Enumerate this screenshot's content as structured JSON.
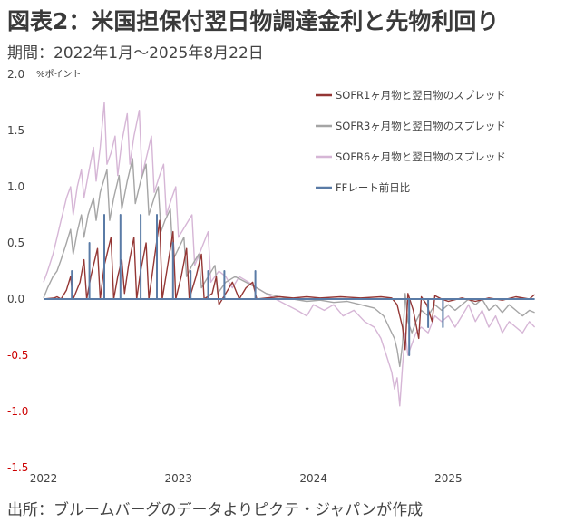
{
  "header": {
    "title": "図表2：米国担保付翌日物調達金利と先物利回り",
    "period": "期間：2022年1月〜2025年8月22日"
  },
  "footer": {
    "source": "出所：ブルームバーグのデータよりピクテ・ジャパンが作成"
  },
  "colors": {
    "axis_text": "#444444",
    "negative_tick": "#cc0000",
    "baseline": "#bfbfbf"
  },
  "chart_data": {
    "type": "line",
    "ylabel": "%ポイント",
    "ylim": [
      -1.5,
      2.0
    ],
    "yticks": [
      2.0,
      1.5,
      1.0,
      0.5,
      0.0,
      -0.5,
      -1.0,
      -1.5
    ],
    "ytick_labels": [
      "2.0",
      "1.5",
      "1.0",
      "0.5",
      "0.0",
      "-0.5",
      "-1.0",
      "-1.5"
    ],
    "xlim": [
      2022.0,
      2025.75
    ],
    "xticks": [
      2022,
      2023,
      2024,
      2025
    ],
    "xtick_labels": [
      "2022",
      "2023",
      "2024",
      "2025"
    ],
    "legend_position": "top-right",
    "grid": false,
    "series": [
      {
        "name": "SOFR1ヶ月物と翌日物のスプレッド",
        "color": "#943634",
        "points": [
          [
            2022.0,
            0.0
          ],
          [
            2022.08,
            0.01
          ],
          [
            2022.1,
            0.02
          ],
          [
            2022.13,
            0.0
          ],
          [
            2022.17,
            0.08
          ],
          [
            2022.2,
            0.2
          ],
          [
            2022.22,
            0.0
          ],
          [
            2022.27,
            0.15
          ],
          [
            2022.3,
            0.35
          ],
          [
            2022.32,
            0.0
          ],
          [
            2022.35,
            0.2
          ],
          [
            2022.4,
            0.45
          ],
          [
            2022.42,
            0.0
          ],
          [
            2022.45,
            0.3
          ],
          [
            2022.5,
            0.55
          ],
          [
            2022.52,
            0.0
          ],
          [
            2022.55,
            0.2
          ],
          [
            2022.58,
            0.35
          ],
          [
            2022.6,
            0.05
          ],
          [
            2022.63,
            0.3
          ],
          [
            2022.67,
            0.55
          ],
          [
            2022.69,
            0.0
          ],
          [
            2022.72,
            0.25
          ],
          [
            2022.76,
            0.5
          ],
          [
            2022.78,
            0.0
          ],
          [
            2022.82,
            0.35
          ],
          [
            2022.86,
            0.7
          ],
          [
            2022.88,
            0.0
          ],
          [
            2022.92,
            0.3
          ],
          [
            2022.96,
            0.6
          ],
          [
            2022.98,
            0.0
          ],
          [
            2023.02,
            0.2
          ],
          [
            2023.06,
            0.45
          ],
          [
            2023.08,
            0.0
          ],
          [
            2023.13,
            0.2
          ],
          [
            2023.17,
            0.4
          ],
          [
            2023.19,
            0.0
          ],
          [
            2023.25,
            0.05
          ],
          [
            2023.28,
            0.2
          ],
          [
            2023.3,
            -0.05
          ],
          [
            2023.35,
            0.05
          ],
          [
            2023.4,
            0.15
          ],
          [
            2023.45,
            0.0
          ],
          [
            2023.5,
            0.1
          ],
          [
            2023.55,
            0.15
          ],
          [
            2023.58,
            0.0
          ],
          [
            2023.65,
            0.01
          ],
          [
            2023.75,
            0.02
          ],
          [
            2023.85,
            0.01
          ],
          [
            2023.95,
            0.02
          ],
          [
            2024.05,
            0.01
          ],
          [
            2024.2,
            0.02
          ],
          [
            2024.35,
            0.01
          ],
          [
            2024.5,
            0.02
          ],
          [
            2024.58,
            0.01
          ],
          [
            2024.62,
            -0.05
          ],
          [
            2024.66,
            -0.25
          ],
          [
            2024.68,
            -0.45
          ],
          [
            2024.7,
            0.05
          ],
          [
            2024.74,
            -0.1
          ],
          [
            2024.78,
            -0.35
          ],
          [
            2024.8,
            0.02
          ],
          [
            2024.84,
            -0.05
          ],
          [
            2024.88,
            -0.2
          ],
          [
            2024.9,
            0.03
          ],
          [
            2024.95,
            0.0
          ],
          [
            2025.0,
            -0.02
          ],
          [
            2025.1,
            0.01
          ],
          [
            2025.2,
            -0.02
          ],
          [
            2025.3,
            0.01
          ],
          [
            2025.4,
            -0.01
          ],
          [
            2025.5,
            0.02
          ],
          [
            2025.6,
            0.0
          ],
          [
            2025.64,
            0.04
          ]
        ]
      },
      {
        "name": "SOFR3ヶ月物と翌日物のスプレッド",
        "color": "#a5a5a5",
        "points": [
          [
            2022.0,
            0.01
          ],
          [
            2022.03,
            0.1
          ],
          [
            2022.07,
            0.2
          ],
          [
            2022.1,
            0.25
          ],
          [
            2022.13,
            0.35
          ],
          [
            2022.17,
            0.5
          ],
          [
            2022.2,
            0.62
          ],
          [
            2022.22,
            0.4
          ],
          [
            2022.25,
            0.6
          ],
          [
            2022.28,
            0.75
          ],
          [
            2022.3,
            0.55
          ],
          [
            2022.33,
            0.75
          ],
          [
            2022.37,
            0.9
          ],
          [
            2022.39,
            0.7
          ],
          [
            2022.42,
            0.95
          ],
          [
            2022.47,
            1.15
          ],
          [
            2022.49,
            0.7
          ],
          [
            2022.52,
            0.9
          ],
          [
            2022.56,
            1.1
          ],
          [
            2022.58,
            0.8
          ],
          [
            2022.62,
            1.05
          ],
          [
            2022.66,
            1.25
          ],
          [
            2022.68,
            0.85
          ],
          [
            2022.72,
            1.05
          ],
          [
            2022.76,
            1.2
          ],
          [
            2022.78,
            0.75
          ],
          [
            2022.82,
            0.9
          ],
          [
            2022.85,
            1.0
          ],
          [
            2022.87,
            0.6
          ],
          [
            2022.9,
            0.7
          ],
          [
            2022.94,
            0.8
          ],
          [
            2022.96,
            0.35
          ],
          [
            2023.0,
            0.45
          ],
          [
            2023.04,
            0.55
          ],
          [
            2023.06,
            0.2
          ],
          [
            2023.1,
            0.3
          ],
          [
            2023.15,
            0.4
          ],
          [
            2023.17,
            0.1
          ],
          [
            2023.22,
            0.2
          ],
          [
            2023.27,
            0.3
          ],
          [
            2023.29,
            0.05
          ],
          [
            2023.35,
            0.15
          ],
          [
            2023.42,
            0.2
          ],
          [
            2023.5,
            0.15
          ],
          [
            2023.58,
            0.1
          ],
          [
            2023.65,
            0.05
          ],
          [
            2023.75,
            0.02
          ],
          [
            2023.85,
            0.0
          ],
          [
            2023.95,
            -0.02
          ],
          [
            2024.05,
            -0.01
          ],
          [
            2024.15,
            -0.03
          ],
          [
            2024.25,
            -0.02
          ],
          [
            2024.35,
            -0.05
          ],
          [
            2024.45,
            -0.08
          ],
          [
            2024.52,
            -0.15
          ],
          [
            2024.56,
            -0.25
          ],
          [
            2024.6,
            -0.35
          ],
          [
            2024.62,
            -0.45
          ],
          [
            2024.64,
            -0.6
          ],
          [
            2024.66,
            -0.4
          ],
          [
            2024.68,
            0.05
          ],
          [
            2024.7,
            -0.2
          ],
          [
            2024.73,
            -0.3
          ],
          [
            2024.76,
            -0.2
          ],
          [
            2024.8,
            -0.1
          ],
          [
            2024.85,
            -0.15
          ],
          [
            2024.9,
            -0.05
          ],
          [
            2024.95,
            -0.1
          ],
          [
            2025.0,
            -0.05
          ],
          [
            2025.05,
            -0.1
          ],
          [
            2025.1,
            -0.05
          ],
          [
            2025.15,
            0.0
          ],
          [
            2025.2,
            -0.05
          ],
          [
            2025.25,
            0.0
          ],
          [
            2025.3,
            -0.1
          ],
          [
            2025.35,
            -0.05
          ],
          [
            2025.4,
            -0.12
          ],
          [
            2025.45,
            -0.05
          ],
          [
            2025.5,
            -0.1
          ],
          [
            2025.55,
            -0.15
          ],
          [
            2025.6,
            -0.1
          ],
          [
            2025.64,
            -0.12
          ]
        ]
      },
      {
        "name": "SOFR6ヶ月物と翌日物のスプレッド",
        "color": "#d6b6d6",
        "points": [
          [
            2022.0,
            0.15
          ],
          [
            2022.03,
            0.25
          ],
          [
            2022.07,
            0.4
          ],
          [
            2022.1,
            0.55
          ],
          [
            2022.13,
            0.7
          ],
          [
            2022.17,
            0.9
          ],
          [
            2022.2,
            1.0
          ],
          [
            2022.22,
            0.75
          ],
          [
            2022.25,
            1.0
          ],
          [
            2022.28,
            1.15
          ],
          [
            2022.3,
            0.9
          ],
          [
            2022.33,
            1.1
          ],
          [
            2022.37,
            1.35
          ],
          [
            2022.39,
            1.05
          ],
          [
            2022.42,
            1.35
          ],
          [
            2022.45,
            1.75
          ],
          [
            2022.47,
            1.2
          ],
          [
            2022.5,
            1.3
          ],
          [
            2022.53,
            1.45
          ],
          [
            2022.55,
            1.1
          ],
          [
            2022.58,
            1.4
          ],
          [
            2022.62,
            1.65
          ],
          [
            2022.64,
            1.2
          ],
          [
            2022.67,
            1.45
          ],
          [
            2022.71,
            1.68
          ],
          [
            2022.73,
            1.1
          ],
          [
            2022.77,
            1.3
          ],
          [
            2022.8,
            1.45
          ],
          [
            2022.82,
            0.95
          ],
          [
            2022.86,
            1.1
          ],
          [
            2022.89,
            1.2
          ],
          [
            2022.91,
            0.75
          ],
          [
            2022.95,
            0.9
          ],
          [
            2022.98,
            1.0
          ],
          [
            2023.0,
            0.55
          ],
          [
            2023.05,
            0.65
          ],
          [
            2023.1,
            0.75
          ],
          [
            2023.12,
            0.3
          ],
          [
            2023.17,
            0.45
          ],
          [
            2023.22,
            0.6
          ],
          [
            2023.24,
            0.15
          ],
          [
            2023.3,
            0.25
          ],
          [
            2023.35,
            0.2
          ],
          [
            2023.4,
            0.1
          ],
          [
            2023.45,
            0.2
          ],
          [
            2023.52,
            0.15
          ],
          [
            2023.58,
            0.1
          ],
          [
            2023.65,
            0.05
          ],
          [
            2023.72,
            0.0
          ],
          [
            2023.8,
            -0.05
          ],
          [
            2023.88,
            -0.1
          ],
          [
            2023.95,
            -0.15
          ],
          [
            2024.0,
            -0.05
          ],
          [
            2024.08,
            -0.1
          ],
          [
            2024.15,
            -0.05
          ],
          [
            2024.22,
            -0.15
          ],
          [
            2024.3,
            -0.1
          ],
          [
            2024.38,
            -0.2
          ],
          [
            2024.45,
            -0.25
          ],
          [
            2024.5,
            -0.35
          ],
          [
            2024.54,
            -0.5
          ],
          [
            2024.58,
            -0.65
          ],
          [
            2024.6,
            -0.8
          ],
          [
            2024.62,
            -0.7
          ],
          [
            2024.64,
            -0.95
          ],
          [
            2024.66,
            -0.6
          ],
          [
            2024.68,
            -0.3
          ],
          [
            2024.7,
            -0.5
          ],
          [
            2024.73,
            -0.4
          ],
          [
            2024.76,
            -0.3
          ],
          [
            2024.8,
            -0.25
          ],
          [
            2024.85,
            -0.3
          ],
          [
            2024.9,
            -0.15
          ],
          [
            2024.95,
            -0.2
          ],
          [
            2025.0,
            -0.15
          ],
          [
            2025.05,
            -0.25
          ],
          [
            2025.1,
            -0.15
          ],
          [
            2025.15,
            -0.05
          ],
          [
            2025.2,
            -0.2
          ],
          [
            2025.25,
            -0.1
          ],
          [
            2025.3,
            -0.25
          ],
          [
            2025.35,
            -0.15
          ],
          [
            2025.4,
            -0.3
          ],
          [
            2025.45,
            -0.2
          ],
          [
            2025.5,
            -0.25
          ],
          [
            2025.55,
            -0.3
          ],
          [
            2025.6,
            -0.2
          ],
          [
            2025.64,
            -0.25
          ]
        ]
      },
      {
        "name": "FFレート前日比",
        "color": "#5a7ba6",
        "points": [
          [
            2022.0,
            0.0
          ],
          [
            2022.21,
            0.0
          ],
          [
            2022.21,
            0.25
          ],
          [
            2022.21,
            0.0
          ],
          [
            2022.34,
            0.0
          ],
          [
            2022.34,
            0.5
          ],
          [
            2022.34,
            0.0
          ],
          [
            2022.45,
            0.0
          ],
          [
            2022.45,
            0.75
          ],
          [
            2022.45,
            0.0
          ],
          [
            2022.57,
            0.0
          ],
          [
            2022.57,
            0.75
          ],
          [
            2022.57,
            0.0
          ],
          [
            2022.72,
            0.0
          ],
          [
            2022.72,
            0.75
          ],
          [
            2022.72,
            0.0
          ],
          [
            2022.84,
            0.0
          ],
          [
            2022.84,
            0.75
          ],
          [
            2022.84,
            0.0
          ],
          [
            2022.96,
            0.0
          ],
          [
            2022.96,
            0.5
          ],
          [
            2022.96,
            0.0
          ],
          [
            2023.09,
            0.0
          ],
          [
            2023.09,
            0.25
          ],
          [
            2023.09,
            0.0
          ],
          [
            2023.22,
            0.0
          ],
          [
            2023.22,
            0.25
          ],
          [
            2023.22,
            0.0
          ],
          [
            2023.34,
            0.0
          ],
          [
            2023.34,
            0.25
          ],
          [
            2023.34,
            0.0
          ],
          [
            2023.57,
            0.0
          ],
          [
            2023.57,
            0.25
          ],
          [
            2023.57,
            0.0
          ],
          [
            2024.71,
            0.0
          ],
          [
            2024.71,
            -0.5
          ],
          [
            2024.71,
            0.0
          ],
          [
            2024.85,
            0.0
          ],
          [
            2024.85,
            -0.25
          ],
          [
            2024.85,
            0.0
          ],
          [
            2024.96,
            0.0
          ],
          [
            2024.96,
            -0.25
          ],
          [
            2024.96,
            0.0
          ],
          [
            2025.64,
            0.0
          ]
        ]
      }
    ]
  }
}
